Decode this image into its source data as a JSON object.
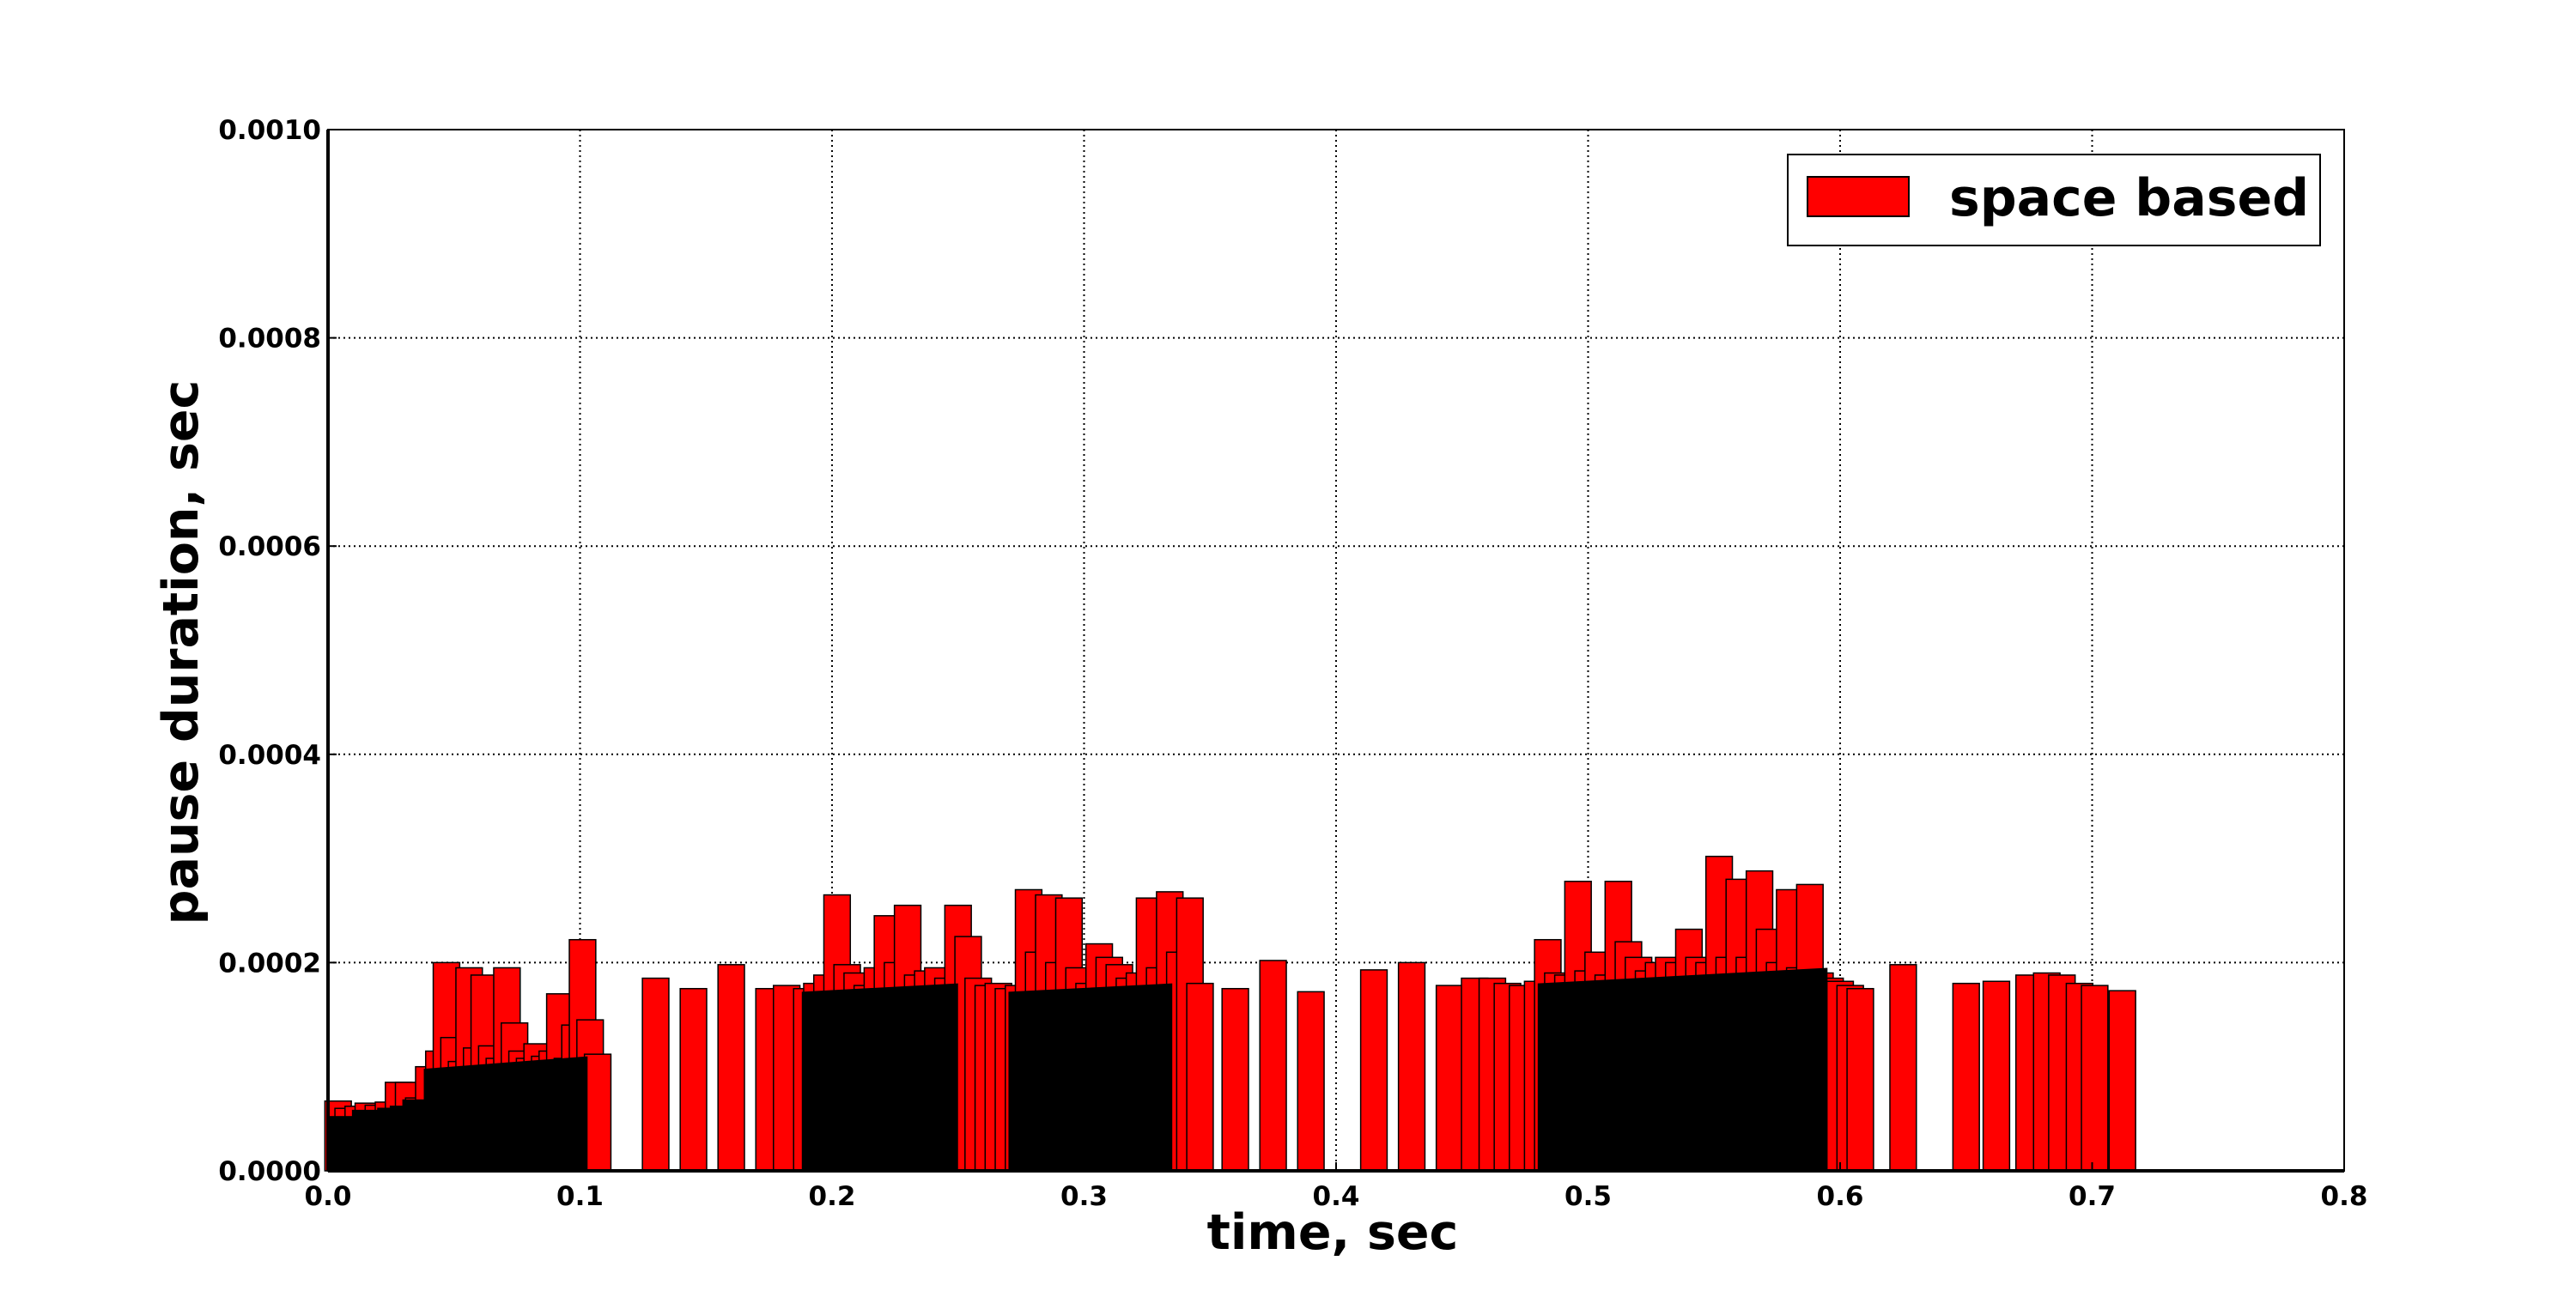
{
  "chart_data": {
    "type": "bar",
    "title": "",
    "xlabel": "time, sec",
    "ylabel": "pause duration, sec",
    "xlim": [
      0.0,
      0.8
    ],
    "ylim": [
      0.0,
      0.001
    ],
    "x_ticks": [
      "0.0",
      "0.1",
      "0.2",
      "0.3",
      "0.4",
      "0.5",
      "0.6",
      "0.7",
      "0.8"
    ],
    "y_ticks": [
      "0.0000",
      "0.0002",
      "0.0004",
      "0.0006",
      "0.0008",
      "0.0010"
    ],
    "grid": true,
    "legend": {
      "position": "top-right",
      "entries": [
        {
          "label": "space based",
          "color": "#ff0000"
        }
      ]
    },
    "bar_color": "#ff0000",
    "bar_edge_color": "#000000",
    "bar_width": 0.0105,
    "series": [
      {
        "name": "space based",
        "x": [
          0.004,
          0.008,
          0.012,
          0.016,
          0.02,
          0.024,
          0.028,
          0.032,
          0.036,
          0.04,
          0.044,
          0.047,
          0.05,
          0.053,
          0.056,
          0.059,
          0.062,
          0.065,
          0.068,
          0.071,
          0.074,
          0.077,
          0.08,
          0.083,
          0.086,
          0.089,
          0.092,
          0.095,
          0.098,
          0.101,
          0.104,
          0.107,
          0.13,
          0.145,
          0.16,
          0.175,
          0.182,
          0.19,
          0.194,
          0.198,
          0.202,
          0.206,
          0.21,
          0.214,
          0.218,
          0.222,
          0.226,
          0.23,
          0.234,
          0.238,
          0.242,
          0.246,
          0.25,
          0.254,
          0.258,
          0.262,
          0.266,
          0.27,
          0.274,
          0.278,
          0.282,
          0.286,
          0.29,
          0.294,
          0.298,
          0.302,
          0.306,
          0.31,
          0.314,
          0.318,
          0.322,
          0.326,
          0.33,
          0.334,
          0.338,
          0.342,
          0.346,
          0.36,
          0.375,
          0.39,
          0.415,
          0.43,
          0.445,
          0.455,
          0.462,
          0.468,
          0.474,
          0.48,
          0.484,
          0.488,
          0.492,
          0.496,
          0.5,
          0.504,
          0.508,
          0.512,
          0.516,
          0.52,
          0.524,
          0.528,
          0.532,
          0.536,
          0.54,
          0.544,
          0.548,
          0.552,
          0.556,
          0.56,
          0.564,
          0.568,
          0.572,
          0.576,
          0.58,
          0.584,
          0.588,
          0.592,
          0.596,
          0.6,
          0.604,
          0.608,
          0.625,
          0.65,
          0.662,
          0.675,
          0.682,
          0.688,
          0.695,
          0.701,
          0.712
        ],
        "y": [
          6.7e-05,
          6e-05,
          6.2e-05,
          6.5e-05,
          6.3e-05,
          6.6e-05,
          8.5e-05,
          8.5e-05,
          7e-05,
          0.0001,
          0.000115,
          0.0002,
          0.000128,
          0.000105,
          0.000195,
          0.000118,
          0.000188,
          0.00012,
          0.000108,
          0.000195,
          0.000142,
          0.000115,
          0.000108,
          0.000122,
          0.00011,
          0.000115,
          0.00017,
          0.000108,
          0.00014,
          0.000222,
          0.000145,
          0.000112,
          0.000185,
          0.000175,
          0.000198,
          0.000175,
          0.000178,
          0.000175,
          0.00018,
          0.000188,
          0.000265,
          0.000198,
          0.00019,
          0.000178,
          0.000195,
          0.000245,
          0.0002,
          0.000255,
          0.000188,
          0.000192,
          0.000195,
          0.000185,
          0.000255,
          0.000225,
          0.000185,
          0.000178,
          0.00018,
          0.000175,
          0.000178,
          0.00027,
          0.00021,
          0.000265,
          0.0002,
          0.000262,
          0.000195,
          0.00018,
          0.000218,
          0.000205,
          0.000198,
          0.000185,
          0.00019,
          0.000262,
          0.000195,
          0.000268,
          0.00021,
          0.000262,
          0.00018,
          0.000175,
          0.000202,
          0.000172,
          0.000193,
          0.0002,
          0.000178,
          0.000185,
          0.000185,
          0.00018,
          0.000178,
          0.000182,
          0.000222,
          0.00019,
          0.000188,
          0.000278,
          0.000192,
          0.00021,
          0.000188,
          0.000278,
          0.00022,
          0.000205,
          0.000192,
          0.0002,
          0.000205,
          0.0002,
          0.000232,
          0.000205,
          0.0002,
          0.000302,
          0.000205,
          0.00028,
          0.000205,
          0.000288,
          0.000232,
          0.0002,
          0.00027,
          0.000195,
          0.000275,
          0.00019,
          0.000185,
          0.000182,
          0.000178,
          0.000175,
          0.000198,
          0.00018,
          0.000182,
          0.000188,
          0.00019,
          0.000188,
          0.00018,
          0.000178,
          0.000173
        ]
      },
      {
        "name": "",
        "x": [
          0.005,
          0.01,
          0.015,
          0.02,
          0.025,
          0.03,
          0.035
        ],
        "y": [
          5.2e-05,
          4.2e-05,
          5.8e-05,
          5.6e-05,
          6e-05,
          6.2e-05,
          6.8e-05
        ]
      }
    ]
  }
}
